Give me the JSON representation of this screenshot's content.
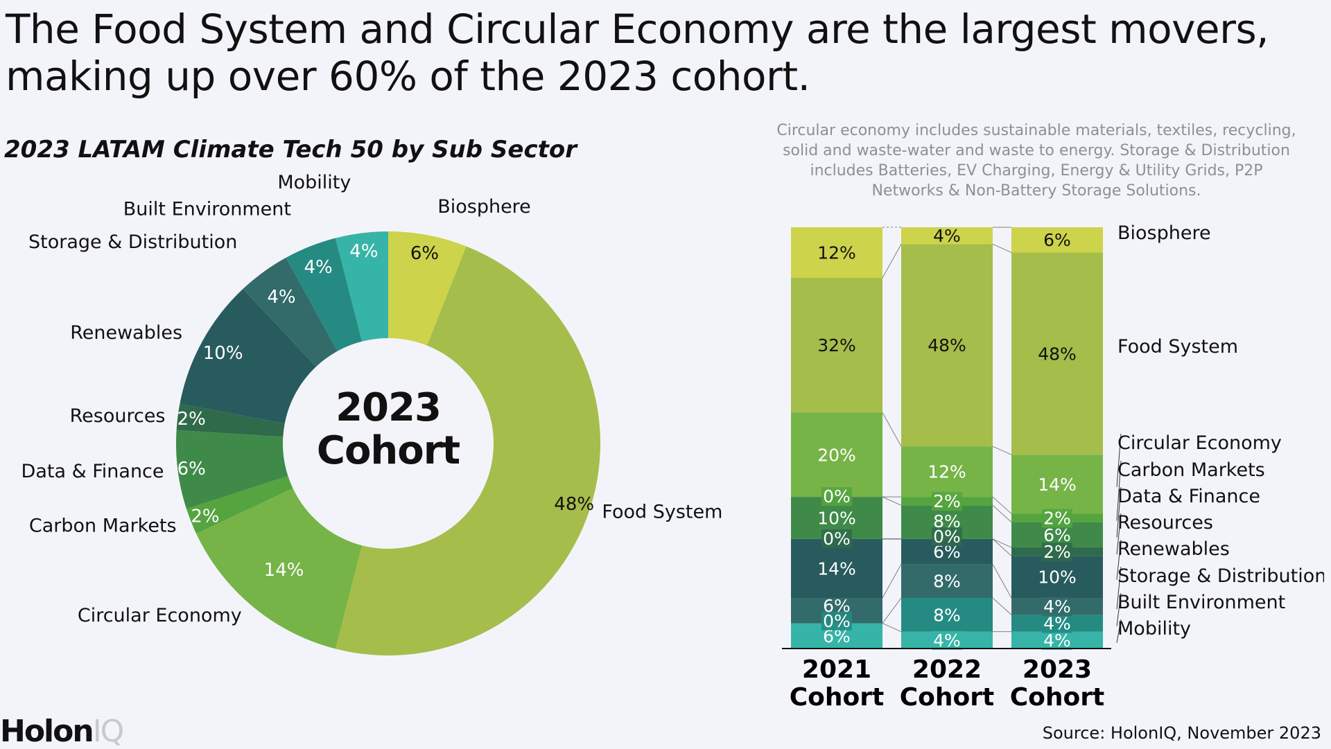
{
  "headline": "The Food System and Circular Economy are the largest movers, making up over 60% of the 2023 cohort.",
  "subtitle": "2023 LATAM Climate Tech 50 by Sub Sector",
  "note": "Circular economy includes sustainable materials, textiles, recycling, solid and waste-water and waste to energy. Storage & Distribution includes Batteries, EV Charging, Energy & Utility Grids, P2P Networks & Non-Battery Storage Solutions.",
  "donut_center": {
    "line1": "2023",
    "line2": "Cohort"
  },
  "logo": {
    "brand": "Holon",
    "suffix": "IQ"
  },
  "source": "Source: HolonIQ, November 2023",
  "colors": {
    "Biosphere": "#cdd34a",
    "Food System": "#a5bd4b",
    "Circular Economy": "#76b447",
    "Carbon Markets": "#55a43f",
    "Data & Finance": "#3f8a48",
    "Resources": "#2f6a4b",
    "Renewables": "#285b5e",
    "Storage & Distribution": "#336b6b",
    "Built Environment": "#258a82",
    "Mobility": "#36b4a7"
  },
  "chart_data": [
    {
      "type": "pie",
      "title": "2023 LATAM Climate Tech 50 by Sub Sector",
      "center_label": "2023 Cohort",
      "categories": [
        "Biosphere",
        "Food System",
        "Circular Economy",
        "Carbon Markets",
        "Data & Finance",
        "Resources",
        "Renewables",
        "Storage & Distribution",
        "Built Environment",
        "Mobility"
      ],
      "values": [
        6,
        48,
        14,
        2,
        6,
        2,
        10,
        4,
        4,
        4
      ],
      "value_labels": [
        "6%",
        "48%",
        "14%",
        "2%",
        "6%",
        "2%",
        "10%",
        "4%",
        "4%",
        "4%"
      ],
      "unit": "%"
    },
    {
      "type": "bar",
      "stacked": true,
      "categories": [
        "2021 Cohort",
        "2022 Cohort",
        "2023 Cohort"
      ],
      "series": [
        {
          "name": "Mobility",
          "values": [
            6,
            4,
            4
          ]
        },
        {
          "name": "Built Environment",
          "values": [
            0,
            8,
            4
          ]
        },
        {
          "name": "Storage & Distribution",
          "values": [
            6,
            8,
            4
          ]
        },
        {
          "name": "Renewables",
          "values": [
            14,
            6,
            10
          ]
        },
        {
          "name": "Resources",
          "values": [
            0,
            0,
            2
          ]
        },
        {
          "name": "Data & Finance",
          "values": [
            10,
            8,
            6
          ]
        },
        {
          "name": "Carbon Markets",
          "values": [
            0,
            2,
            2
          ]
        },
        {
          "name": "Circular Economy",
          "values": [
            20,
            12,
            14
          ]
        },
        {
          "name": "Food System",
          "values": [
            32,
            48,
            48
          ]
        },
        {
          "name": "Biosphere",
          "values": [
            12,
            4,
            6
          ]
        }
      ],
      "ylim": [
        0,
        100
      ],
      "unit": "%"
    }
  ]
}
